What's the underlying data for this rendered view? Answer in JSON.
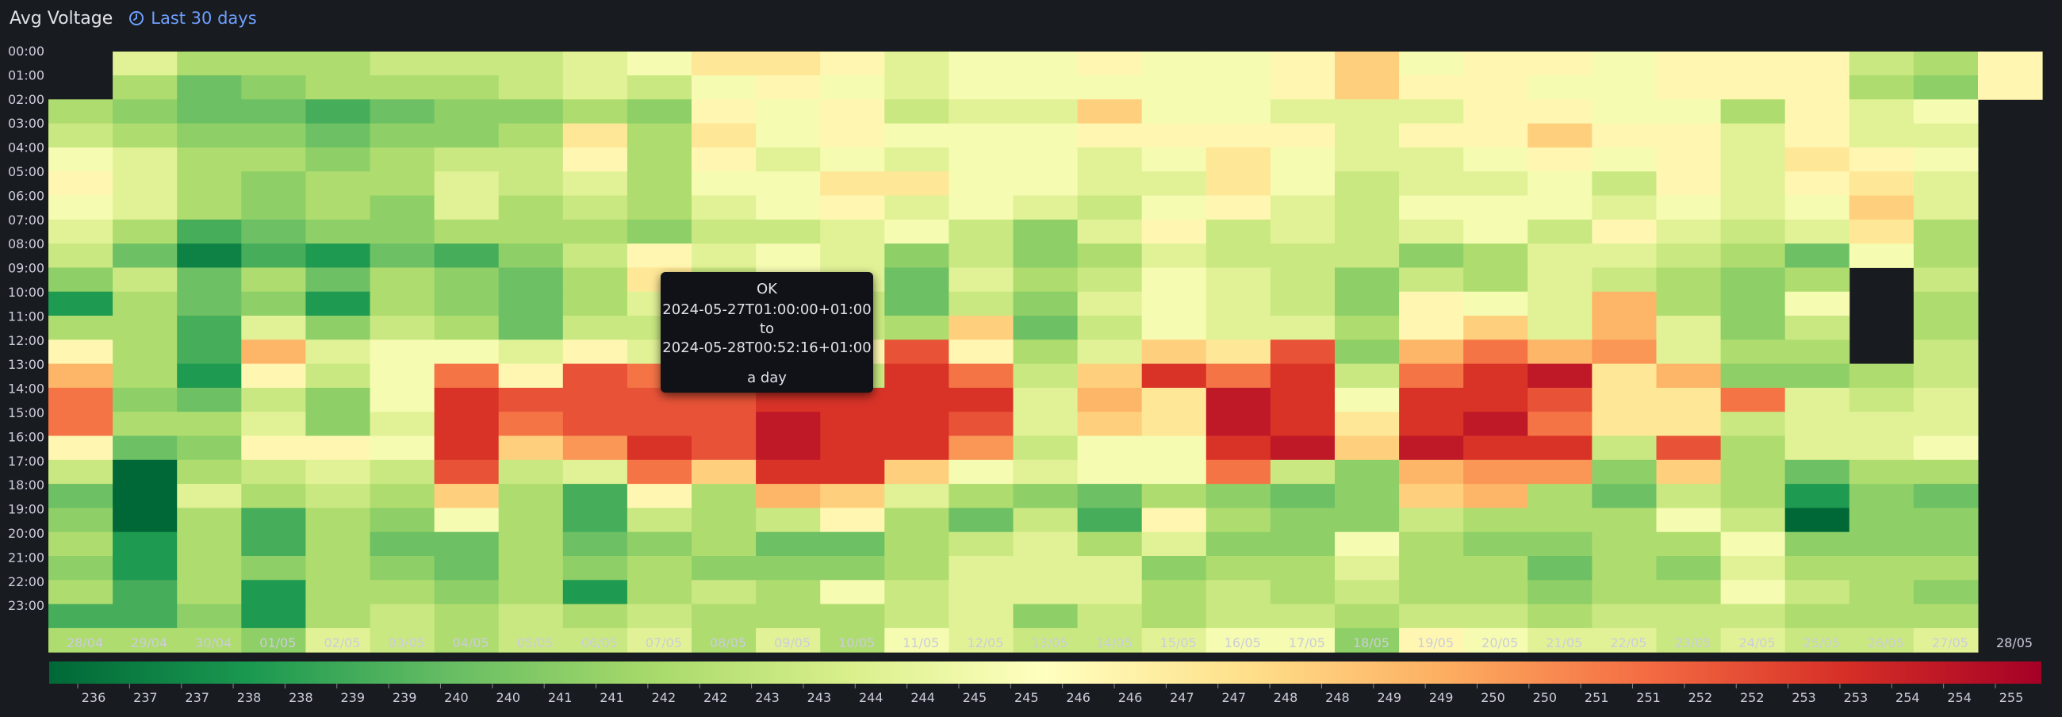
{
  "panel": {
    "title": "Avg Voltage",
    "time_range": "Last 30 days"
  },
  "icons": {
    "time": "clock-icon"
  },
  "tooltip": {
    "status": "OK",
    "from": "2024-05-27T01:00:00+01:00",
    "to_word": "to",
    "to": "2024-05-28T00:52:16+01:00",
    "duration": "a day"
  },
  "chart_data": {
    "type": "heatmap",
    "title": "Avg Voltage",
    "x_labels": [
      "28/04",
      "29/04",
      "30/04",
      "01/05",
      "02/05",
      "03/05",
      "04/05",
      "05/05",
      "06/05",
      "07/05",
      "08/05",
      "09/05",
      "10/05",
      "11/05",
      "12/05",
      "13/05",
      "14/05",
      "15/05",
      "16/05",
      "17/05",
      "18/05",
      "19/05",
      "20/05",
      "21/05",
      "22/05",
      "23/05",
      "24/05",
      "25/05",
      "26/05",
      "27/05",
      "28/05"
    ],
    "y_labels": [
      "00:00",
      "01:00",
      "02:00",
      "03:00",
      "04:00",
      "05:00",
      "06:00",
      "07:00",
      "08:00",
      "09:00",
      "10:00",
      "11:00",
      "12:00",
      "13:00",
      "14:00",
      "15:00",
      "16:00",
      "17:00",
      "18:00",
      "19:00",
      "20:00",
      "21:00",
      "22:00",
      "23:00"
    ],
    "values": [
      [
        null,
        null,
        null,
        null,
        null,
        null,
        null,
        null,
        null,
        null,
        null,
        null,
        null,
        null,
        null,
        null,
        null,
        null,
        null,
        null,
        null,
        null,
        null,
        null,
        null,
        null,
        null,
        null,
        null,
        null,
        null
      ],
      [
        null,
        242,
        240,
        241,
        242,
        242,
        242,
        243,
        244,
        243,
        245,
        246,
        245,
        244,
        245,
        245,
        245,
        245,
        245,
        246,
        248,
        246,
        246,
        245,
        245,
        246,
        246,
        246,
        242,
        241,
        246
      ],
      [
        242,
        241,
        240,
        240,
        239,
        240,
        241,
        241,
        242,
        241,
        246,
        245,
        246,
        243,
        244,
        244,
        248,
        245,
        245,
        244,
        244,
        244,
        246,
        246,
        245,
        245,
        242,
        246,
        244,
        245,
        null
      ],
      [
        243,
        242,
        241,
        241,
        240,
        241,
        241,
        242,
        247,
        242,
        247,
        245,
        246,
        245,
        245,
        245,
        246,
        246,
        246,
        246,
        244,
        246,
        246,
        248,
        246,
        246,
        244,
        246,
        244,
        244,
        null
      ],
      [
        245,
        244,
        242,
        242,
        241,
        242,
        243,
        243,
        246,
        242,
        246,
        244,
        245,
        244,
        245,
        245,
        244,
        245,
        247,
        245,
        244,
        244,
        245,
        246,
        245,
        246,
        244,
        247,
        246,
        245,
        null
      ],
      [
        246,
        244,
        242,
        241,
        242,
        242,
        244,
        243,
        244,
        242,
        245,
        245,
        247,
        247,
        245,
        245,
        244,
        244,
        247,
        245,
        243,
        244,
        244,
        245,
        243,
        246,
        244,
        246,
        247,
        244,
        null
      ],
      [
        245,
        244,
        242,
        241,
        242,
        241,
        244,
        242,
        243,
        242,
        244,
        245,
        246,
        244,
        245,
        244,
        243,
        245,
        246,
        244,
        243,
        245,
        245,
        245,
        244,
        245,
        244,
        245,
        248,
        244,
        null
      ],
      [
        244,
        242,
        239,
        240,
        241,
        241,
        242,
        242,
        242,
        241,
        243,
        243,
        244,
        245,
        243,
        241,
        244,
        246,
        243,
        244,
        243,
        244,
        245,
        243,
        246,
        244,
        243,
        244,
        247,
        242,
        null
      ],
      [
        243,
        240,
        237,
        239,
        238,
        240,
        239,
        241,
        243,
        246,
        244,
        245,
        244,
        241,
        243,
        241,
        242,
        244,
        243,
        243,
        243,
        241,
        242,
        244,
        244,
        243,
        242,
        240,
        245,
        242,
        null
      ],
      [
        241,
        243,
        240,
        242,
        240,
        242,
        241,
        240,
        242,
        247,
        243,
        245,
        244,
        240,
        244,
        242,
        243,
        245,
        244,
        243,
        241,
        243,
        242,
        244,
        243,
        242,
        241,
        242,
        null,
        243,
        null
      ],
      [
        238,
        242,
        240,
        241,
        238,
        242,
        241,
        240,
        242,
        244,
        244,
        243,
        243,
        240,
        243,
        241,
        244,
        245,
        244,
        243,
        241,
        246,
        245,
        244,
        249,
        242,
        241,
        245,
        null,
        242,
        null
      ],
      [
        242,
        242,
        239,
        244,
        241,
        243,
        242,
        240,
        243,
        243,
        244,
        246,
        243,
        242,
        248,
        240,
        243,
        245,
        244,
        244,
        242,
        246,
        248,
        244,
        249,
        244,
        241,
        243,
        null,
        242,
        null
      ],
      [
        246,
        242,
        239,
        249,
        244,
        245,
        245,
        244,
        246,
        244,
        244,
        244,
        246,
        252,
        246,
        242,
        244,
        248,
        247,
        252,
        241,
        249,
        251,
        249,
        250,
        244,
        242,
        242,
        null,
        243,
        null
      ],
      [
        249,
        242,
        238,
        246,
        243,
        245,
        251,
        246,
        252,
        251,
        245,
        244,
        243,
        253,
        251,
        243,
        248,
        253,
        251,
        253,
        243,
        251,
        253,
        254,
        247,
        249,
        241,
        241,
        242,
        243,
        null
      ],
      [
        251,
        241,
        240,
        243,
        241,
        245,
        253,
        252,
        252,
        252,
        252,
        253,
        253,
        253,
        253,
        244,
        249,
        247,
        254,
        253,
        245,
        253,
        253,
        252,
        247,
        247,
        251,
        244,
        243,
        244,
        null
      ],
      [
        251,
        242,
        242,
        244,
        241,
        244,
        253,
        251,
        252,
        252,
        252,
        254,
        253,
        253,
        252,
        244,
        248,
        247,
        254,
        253,
        247,
        253,
        254,
        251,
        247,
        247,
        243,
        244,
        244,
        244,
        null
      ],
      [
        246,
        240,
        241,
        246,
        246,
        245,
        253,
        248,
        250,
        253,
        252,
        254,
        253,
        253,
        250,
        243,
        245,
        245,
        253,
        254,
        248,
        254,
        253,
        253,
        243,
        252,
        242,
        244,
        244,
        245,
        null
      ],
      [
        243,
        236,
        242,
        243,
        244,
        243,
        252,
        243,
        244,
        251,
        248,
        253,
        253,
        248,
        245,
        244,
        245,
        245,
        251,
        243,
        241,
        249,
        250,
        250,
        241,
        248,
        242,
        240,
        242,
        242,
        null
      ],
      [
        240,
        236,
        244,
        242,
        243,
        242,
        248,
        242,
        239,
        246,
        242,
        249,
        248,
        244,
        242,
        241,
        240,
        242,
        241,
        240,
        241,
        248,
        249,
        242,
        240,
        243,
        242,
        238,
        241,
        240,
        null
      ],
      [
        241,
        236,
        242,
        239,
        242,
        241,
        245,
        242,
        239,
        243,
        242,
        243,
        246,
        242,
        240,
        243,
        239,
        246,
        242,
        241,
        241,
        243,
        242,
        242,
        242,
        245,
        243,
        236,
        241,
        241,
        null
      ],
      [
        242,
        238,
        242,
        239,
        242,
        240,
        240,
        242,
        240,
        241,
        242,
        240,
        240,
        242,
        243,
        244,
        242,
        244,
        241,
        241,
        245,
        242,
        241,
        241,
        242,
        242,
        245,
        241,
        241,
        241,
        null
      ],
      [
        241,
        238,
        242,
        241,
        242,
        241,
        240,
        242,
        241,
        242,
        241,
        241,
        241,
        242,
        244,
        244,
        244,
        241,
        242,
        242,
        244,
        242,
        242,
        240,
        242,
        241,
        244,
        242,
        242,
        242,
        null
      ],
      [
        242,
        239,
        242,
        238,
        242,
        242,
        241,
        242,
        238,
        242,
        243,
        242,
        245,
        243,
        244,
        244,
        244,
        242,
        243,
        242,
        243,
        242,
        242,
        241,
        242,
        242,
        245,
        243,
        242,
        241,
        null
      ],
      [
        239,
        239,
        241,
        238,
        242,
        243,
        242,
        243,
        242,
        243,
        242,
        242,
        242,
        243,
        244,
        241,
        243,
        242,
        243,
        243,
        242,
        243,
        243,
        242,
        243,
        243,
        243,
        242,
        242,
        242,
        null
      ],
      [
        242,
        242,
        242,
        241,
        244,
        243,
        242,
        243,
        243,
        244,
        242,
        244,
        242,
        245,
        244,
        243,
        243,
        244,
        245,
        245,
        241,
        246,
        245,
        244,
        244,
        243,
        244,
        243,
        243,
        244,
        null
      ]
    ],
    "partial_top": [
      null,
      244,
      242,
      242,
      242,
      243,
      243,
      243,
      244,
      245,
      247,
      247,
      246,
      244,
      245,
      245,
      246,
      245,
      245,
      246,
      248,
      245,
      246,
      246,
      245,
      246,
      246,
      246,
      243,
      242,
      246
    ],
    "scale": {
      "min": 236,
      "max": 255,
      "scheme": "RdYlGn-reversed"
    },
    "legend_ticks": [
      "236",
      "237",
      "237",
      "238",
      "238",
      "239",
      "239",
      "240",
      "240",
      "241",
      "241",
      "242",
      "242",
      "243",
      "243",
      "244",
      "244",
      "245",
      "245",
      "246",
      "246",
      "247",
      "247",
      "248",
      "248",
      "249",
      "249",
      "250",
      "250",
      "251",
      "251",
      "252",
      "252",
      "253",
      "253",
      "254",
      "254",
      "255"
    ],
    "grid": false,
    "legend": "bottom"
  }
}
